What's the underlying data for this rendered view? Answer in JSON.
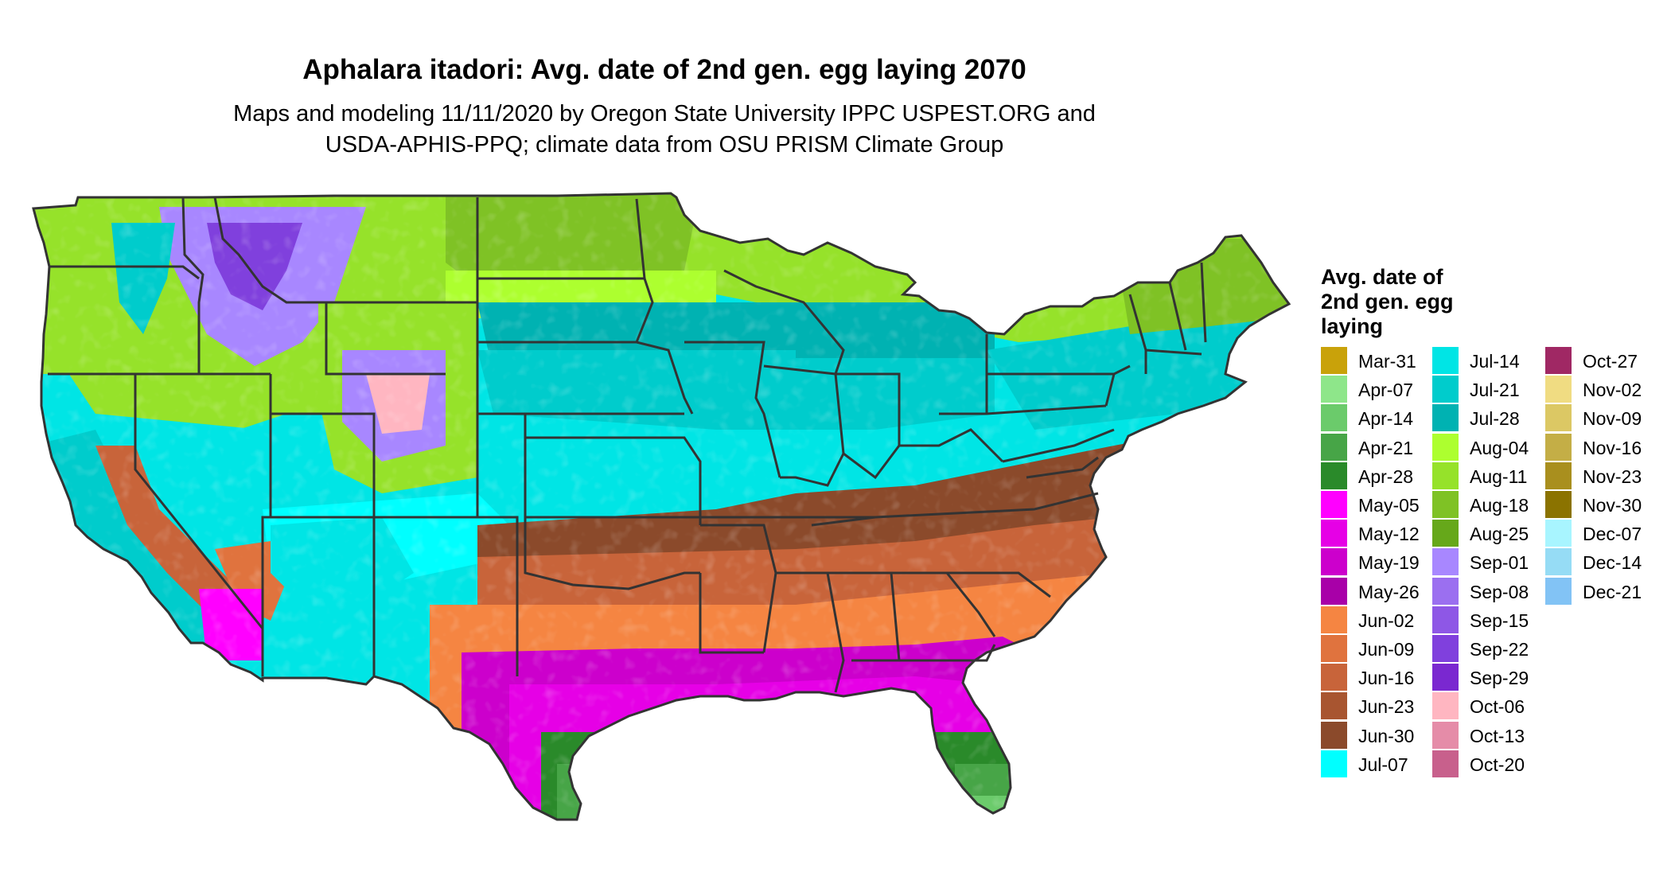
{
  "title": "Aphalara itadori: Avg. date of 2nd gen. egg laying 2070",
  "subtitle": {
    "line1": "Maps and modeling 11/11/2020 by Oregon State University IPPC USPEST.ORG and",
    "line2": "USDA-APHIS-PPQ; climate data from OSU PRISM Climate Group"
  },
  "legend": {
    "title_lines": [
      "Avg. date of",
      "2nd gen. egg",
      "laying"
    ],
    "columns": [
      [
        {
          "label": "Mar-31",
          "color": "#C9A20A"
        },
        {
          "label": "Apr-07",
          "color": "#8EE68A"
        },
        {
          "label": "Apr-14",
          "color": "#6BCB6B"
        },
        {
          "label": "Apr-21",
          "color": "#47A547"
        },
        {
          "label": "Apr-28",
          "color": "#2A8A2A"
        },
        {
          "label": "May-05",
          "color": "#FF00FF"
        },
        {
          "label": "May-12",
          "color": "#E600E6"
        },
        {
          "label": "May-19",
          "color": "#CC00CC"
        },
        {
          "label": "May-26",
          "color": "#A800A8"
        },
        {
          "label": "Jun-02",
          "color": "#F58542"
        },
        {
          "label": "Jun-09",
          "color": "#E0733E"
        },
        {
          "label": "Jun-16",
          "color": "#C8643A"
        },
        {
          "label": "Jun-23",
          "color": "#A85530"
        },
        {
          "label": "Jun-30",
          "color": "#8B4A2B"
        },
        {
          "label": "Jul-07",
          "color": "#00FFFF"
        }
      ],
      [
        {
          "label": "Jul-14",
          "color": "#00E5E5"
        },
        {
          "label": "Jul-21",
          "color": "#00CCCC"
        },
        {
          "label": "Jul-28",
          "color": "#00B2B2"
        },
        {
          "label": "Aug-04",
          "color": "#ADFF2F"
        },
        {
          "label": "Aug-11",
          "color": "#96E22A"
        },
        {
          "label": "Aug-18",
          "color": "#7FC225"
        },
        {
          "label": "Aug-25",
          "color": "#66A81A"
        },
        {
          "label": "Sep-01",
          "color": "#A887FF"
        },
        {
          "label": "Sep-08",
          "color": "#9B6FF0"
        },
        {
          "label": "Sep-15",
          "color": "#8E57E6"
        },
        {
          "label": "Sep-22",
          "color": "#8040DD"
        },
        {
          "label": "Sep-29",
          "color": "#7A28D0"
        },
        {
          "label": "Oct-06",
          "color": "#FFB6C1"
        },
        {
          "label": "Oct-13",
          "color": "#E58CA8"
        },
        {
          "label": "Oct-20",
          "color": "#C8608C"
        }
      ],
      [
        {
          "label": "Oct-27",
          "color": "#A02864"
        },
        {
          "label": "Nov-02",
          "color": "#F0DC82"
        },
        {
          "label": "Nov-09",
          "color": "#DCC864"
        },
        {
          "label": "Nov-16",
          "color": "#C4AE46"
        },
        {
          "label": "Nov-23",
          "color": "#A98F1E"
        },
        {
          "label": "Nov-30",
          "color": "#8B7300"
        },
        {
          "label": "Dec-07",
          "color": "#A8F5FF"
        },
        {
          "label": "Dec-14",
          "color": "#96DCF5"
        },
        {
          "label": "Dec-21",
          "color": "#82C3F5"
        }
      ]
    ]
  },
  "colors": {
    "state_border": "#333333",
    "background": "#ffffff"
  }
}
